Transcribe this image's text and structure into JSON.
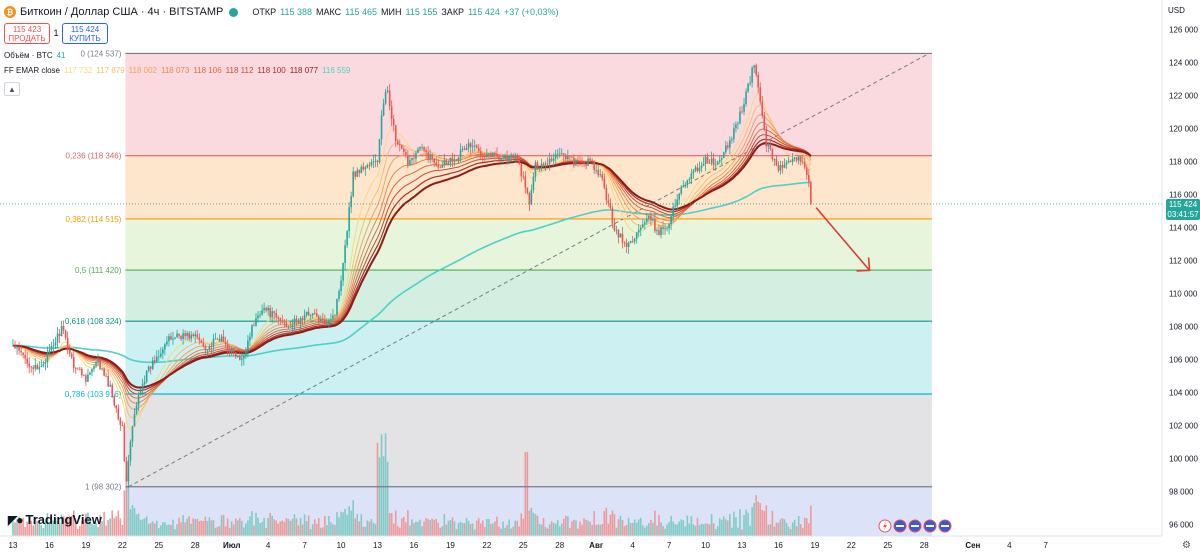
{
  "header": {
    "symbol_badge": "₿",
    "symbol_title": "Биткоин / Доллар США · 4ч · BITSTAMP",
    "ohlc": [
      {
        "key": "ОТКР",
        "value": "115 388"
      },
      {
        "key": "МАКС",
        "value": "115 465"
      },
      {
        "key": "МИН",
        "value": "115 155"
      },
      {
        "key": "ЗАКР",
        "value": "115 424"
      },
      {
        "key": "",
        "value": "+37 (+0,03%)"
      }
    ]
  },
  "trade": {
    "sell_price": "115 423",
    "sell_label": "ПРОДАТЬ",
    "spread": "1",
    "buy_price": "115 424",
    "buy_label": "КУПИТЬ"
  },
  "legend": {
    "volume_label": "Объём · BTC",
    "volume_value": "41",
    "ema_label": "FF EMAR close",
    "ema_values": [
      "117 732",
      "117 879",
      "118 002",
      "118 073",
      "118 106",
      "118 112",
      "118 100",
      "118 077",
      "116 559"
    ],
    "ema_colors": [
      "#f9d97c",
      "#f5c16c",
      "#f0a35e",
      "#e8874f",
      "#dd6b40",
      "#c94c33",
      "#b03024",
      "#8c1c18",
      "#4dd0c8"
    ],
    "collapse_icon": "chevron-up-icon"
  },
  "price_axis": {
    "currency": "USD",
    "current_price": "115 424",
    "countdown": "03:41:57"
  },
  "branding": {
    "logo_text": "TradingView"
  },
  "chart_data": {
    "type": "candlestick",
    "y_range": [
      95500,
      126500
    ],
    "y_ticks": [
      {
        "value": 126000,
        "label": "126 000"
      },
      {
        "value": 124000,
        "label": "124 000"
      },
      {
        "value": 122000,
        "label": "122 000"
      },
      {
        "value": 120000,
        "label": "120 000"
      },
      {
        "value": 118000,
        "label": "118 000"
      },
      {
        "value": 116000,
        "label": "116 000"
      },
      {
        "value": 114000,
        "label": "114 000"
      },
      {
        "value": 112000,
        "label": "112 000"
      },
      {
        "value": 110000,
        "label": "110 000"
      },
      {
        "value": 108000,
        "label": "108 000"
      },
      {
        "value": 106000,
        "label": "106 000"
      },
      {
        "value": 104000,
        "label": "104 000"
      },
      {
        "value": 102000,
        "label": "102 000"
      },
      {
        "value": 100000,
        "label": "100 000"
      },
      {
        "value": 98000,
        "label": "98 000"
      },
      {
        "value": 96000,
        "label": "96 000"
      }
    ],
    "x_ticks": [
      {
        "day": 0,
        "label": "13"
      },
      {
        "day": 3,
        "label": "16"
      },
      {
        "day": 6,
        "label": "19"
      },
      {
        "day": 9,
        "label": "22"
      },
      {
        "day": 12,
        "label": "25"
      },
      {
        "day": 15,
        "label": "28"
      },
      {
        "day": 18,
        "label": "Июл"
      },
      {
        "day": 21,
        "label": "4"
      },
      {
        "day": 24,
        "label": "7"
      },
      {
        "day": 27,
        "label": "10"
      },
      {
        "day": 30,
        "label": "13"
      },
      {
        "day": 33,
        "label": "16"
      },
      {
        "day": 36,
        "label": "19"
      },
      {
        "day": 39,
        "label": "22"
      },
      {
        "day": 42,
        "label": "25"
      },
      {
        "day": 45,
        "label": "28"
      },
      {
        "day": 48,
        "label": "Авг"
      },
      {
        "day": 51,
        "label": "4"
      },
      {
        "day": 54,
        "label": "7"
      },
      {
        "day": 57,
        "label": "10"
      },
      {
        "day": 60,
        "label": "13"
      },
      {
        "day": 63,
        "label": "16"
      },
      {
        "day": 66,
        "label": "19"
      },
      {
        "day": 69,
        "label": "22"
      },
      {
        "day": 72,
        "label": "25"
      },
      {
        "day": 75,
        "label": "28"
      },
      {
        "day": 79,
        "label": "Сен"
      },
      {
        "day": 82,
        "label": "4"
      },
      {
        "day": 85,
        "label": "7"
      }
    ],
    "fib": {
      "levels": [
        {
          "ratio": "0",
          "price": 124537,
          "label": "0 (124 537)",
          "color": "#787b86",
          "fill": "#fbdadf"
        },
        {
          "ratio": "0.236",
          "price": 118346,
          "label": "0,236 (118 346)",
          "color": "#e06060",
          "fill": "#fde6cc"
        },
        {
          "ratio": "0.382",
          "price": 114515,
          "label": "0,382 (114 515)",
          "color": "#ff9800",
          "fill": "#e6f5dc"
        },
        {
          "ratio": "0.5",
          "price": 111420,
          "label": "0,5 (111 420)",
          "color": "#4caf50",
          "fill": "#d4efe2"
        },
        {
          "ratio": "0.618",
          "price": 108324,
          "label": "0,618 (108 324)",
          "color": "#089981",
          "fill": "#cdf0f2"
        },
        {
          "ratio": "0.786",
          "price": 103916,
          "label": "0,786 (103 916)",
          "color": "#00bcd4",
          "fill": "#e3e3e5"
        },
        {
          "ratio": "1",
          "price": 98302,
          "label": "1 (98 302)",
          "color": "#787b86",
          "fill": "#dce3f8"
        }
      ]
    },
    "anchors": [
      [
        0,
        106800
      ],
      [
        2,
        105300
      ],
      [
        3,
        106400
      ],
      [
        4,
        107900
      ],
      [
        5,
        105700
      ],
      [
        6,
        104900
      ],
      [
        7,
        105800
      ],
      [
        8,
        104300
      ],
      [
        9,
        101800
      ],
      [
        9.3,
        98500
      ],
      [
        9.8,
        101800
      ],
      [
        10.5,
        104400
      ],
      [
        11.5,
        105800
      ],
      [
        12.5,
        107000
      ],
      [
        13.5,
        107500
      ],
      [
        15,
        107400
      ],
      [
        16,
        106700
      ],
      [
        17,
        107300
      ],
      [
        18,
        106500
      ],
      [
        18.8,
        105800
      ],
      [
        19.5,
        107600
      ],
      [
        20.5,
        109200
      ],
      [
        21.5,
        108600
      ],
      [
        22.5,
        108100
      ],
      [
        23.5,
        108300
      ],
      [
        24.5,
        108900
      ],
      [
        25.5,
        108200
      ],
      [
        26.5,
        108800
      ],
      [
        27,
        111000
      ],
      [
        27.5,
        114000
      ],
      [
        28,
        117200
      ],
      [
        29,
        117700
      ],
      [
        30,
        118000
      ],
      [
        30.3,
        120600
      ],
      [
        30.8,
        122500
      ],
      [
        31.5,
        119200
      ],
      [
        32.5,
        118000
      ],
      [
        33.5,
        118800
      ],
      [
        35,
        117800
      ],
      [
        36.5,
        118300
      ],
      [
        37.5,
        119000
      ],
      [
        38.5,
        118600
      ],
      [
        40,
        118300
      ],
      [
        41.5,
        118200
      ],
      [
        42.5,
        115500
      ],
      [
        43,
        117700
      ],
      [
        44,
        118000
      ],
      [
        45,
        118600
      ],
      [
        46.5,
        117800
      ],
      [
        47.5,
        118000
      ],
      [
        48.5,
        116800
      ],
      [
        49.5,
        114000
      ],
      [
        50.5,
        112800
      ],
      [
        51.5,
        113800
      ],
      [
        52.5,
        114600
      ],
      [
        53,
        113600
      ],
      [
        54,
        114300
      ],
      [
        55,
        116500
      ],
      [
        56,
        117300
      ],
      [
        57,
        118100
      ],
      [
        58,
        117800
      ],
      [
        59,
        119200
      ],
      [
        60,
        121200
      ],
      [
        60.5,
        122500
      ],
      [
        61,
        123900
      ],
      [
        61.5,
        121700
      ],
      [
        62,
        119100
      ],
      [
        63,
        117600
      ],
      [
        64,
        117900
      ],
      [
        65,
        118200
      ],
      [
        65.5,
        116800
      ],
      [
        65.7,
        115424
      ]
    ],
    "ema_series": [
      {
        "name": "",
        "color": "#4dd0c8",
        "period": 200,
        "width": 1.6
      },
      {
        "name": "",
        "color": "#f9d97c",
        "period": 12,
        "width": 1
      },
      {
        "name": "",
        "color": "#f5c16c",
        "period": 18,
        "width": 1
      },
      {
        "name": "",
        "color": "#f0a35e",
        "period": 24,
        "width": 1
      },
      {
        "name": "",
        "color": "#e8874f",
        "period": 30,
        "width": 1
      },
      {
        "name": "",
        "color": "#dd6b40",
        "period": 36,
        "width": 1
      },
      {
        "name": "",
        "color": "#c94c33",
        "period": 42,
        "width": 1
      },
      {
        "name": "",
        "color": "#b03024",
        "period": 48,
        "width": 1.2
      },
      {
        "name": "",
        "color": "#8c1c18",
        "period": 54,
        "width": 2
      }
    ],
    "current_price": 115424,
    "trend_line": {
      "from": [
        9.5,
        98300
      ],
      "to": [
        75.3,
        124500
      ]
    },
    "projection_arrow": {
      "from": [
        66.1,
        115200
      ],
      "to": [
        70.5,
        111400
      ]
    },
    "volume": {
      "max_btc": 3400
    },
    "event_icons": [
      "lightning-icon",
      "us-flag-icon",
      "us-flag-icon",
      "us-flag-icon",
      "us-flag-icon"
    ],
    "colors": {
      "up": "#26a69a",
      "down": "#ef5350",
      "current": "#26a69a",
      "arrow": "#e53935"
    }
  }
}
